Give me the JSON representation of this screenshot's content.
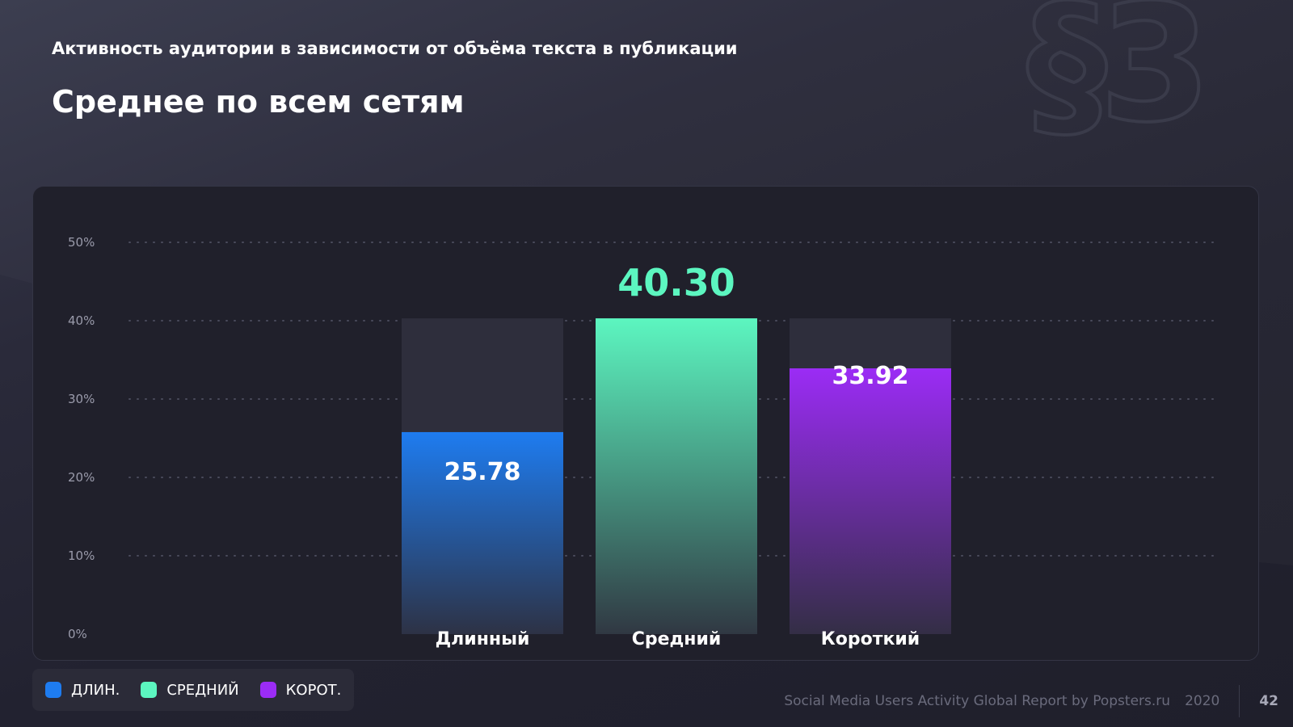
{
  "header": {
    "subtitle": "Активность аудитории в зависимости от объёма текста в публикации",
    "title": "Среднее по всем сетям",
    "section_mark": "§3"
  },
  "chart_data": {
    "type": "bar",
    "categories": [
      "Длинный",
      "Средний",
      "Короткий"
    ],
    "values": [
      25.78,
      40.3,
      33.92
    ],
    "value_labels": [
      "25.78",
      "40.30",
      "33.92"
    ],
    "background_bar_value": 40.3,
    "highlight_index": 1,
    "colors": [
      "#1e7cf0",
      "#5cf6c0",
      "#9b2cf5"
    ],
    "ylim": [
      0,
      50
    ],
    "yticks": [
      "0%",
      "10%",
      "20%",
      "30%",
      "40%",
      "50%"
    ],
    "grid": true,
    "legend_position": "bottom-left"
  },
  "legend": {
    "items": [
      {
        "label": "ДЛИН.",
        "color": "#1e7cf0"
      },
      {
        "label": "СРЕДНИЙ",
        "color": "#5cf6c0"
      },
      {
        "label": "КОРОТ.",
        "color": "#9b2cf5"
      }
    ]
  },
  "footer": {
    "report": "Social Media Users Activity Global Report by Popsters.ru",
    "year": "2020",
    "page": "42"
  }
}
